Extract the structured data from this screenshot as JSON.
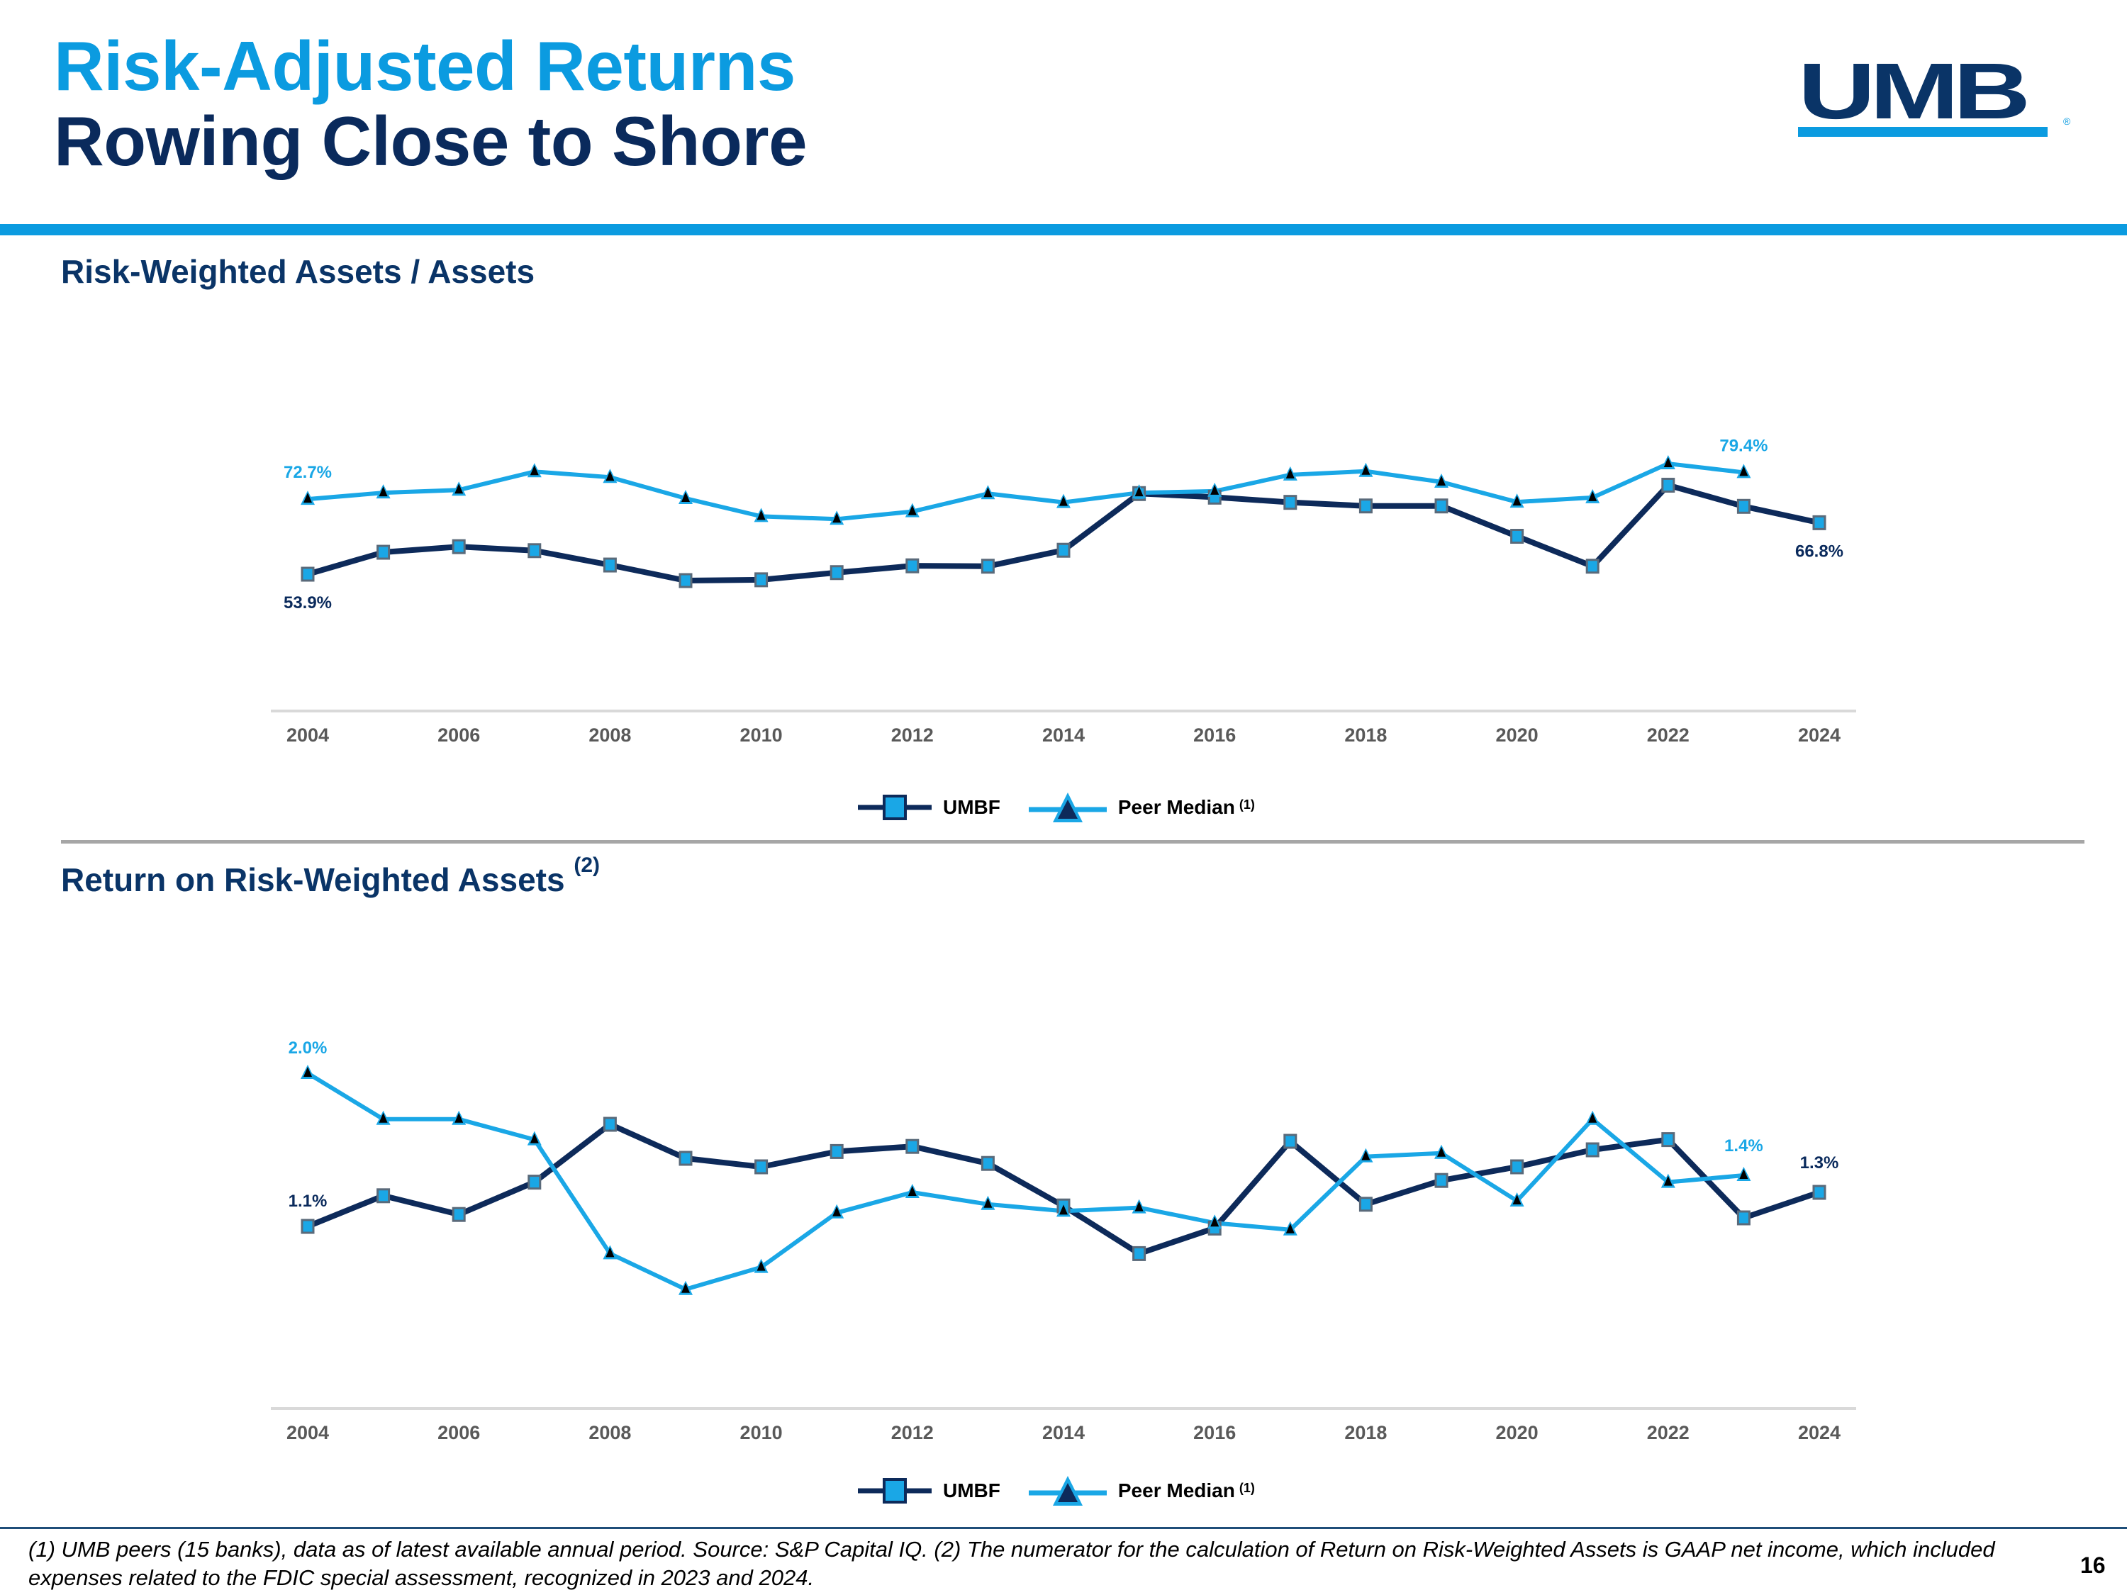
{
  "header": {
    "title_line1": "Risk-Adjusted Returns",
    "title_line2": "Rowing Close to Shore",
    "logo_text": "UMB",
    "logo_reg": "®"
  },
  "colors": {
    "accent_light_blue": "#0b9be0",
    "navy": "#0a2a5c",
    "umbf_line": "#0d2a5a",
    "peer_line": "#1aa7e6",
    "marker_fill": "#1aa7e6"
  },
  "sections": [
    {
      "title": "Risk-Weighted Assets / Assets",
      "footnote_ref": ""
    },
    {
      "title": "Return on Risk-Weighted Assets",
      "footnote_ref": "(2)"
    }
  ],
  "legend": {
    "umbf_label": "UMBF",
    "peer_label": "Peer Median",
    "peer_ref": "(1)"
  },
  "chart_data": [
    {
      "type": "line",
      "title": "Risk-Weighted Assets / Assets",
      "xlabel": "",
      "ylabel": "",
      "x": [
        2004,
        2005,
        2006,
        2007,
        2008,
        2009,
        2010,
        2011,
        2012,
        2013,
        2014,
        2015,
        2016,
        2017,
        2018,
        2019,
        2020,
        2021,
        2022,
        2023,
        2024
      ],
      "x_tick_labels": [
        "2004",
        "2006",
        "2008",
        "2010",
        "2012",
        "2014",
        "2016",
        "2018",
        "2020",
        "2022",
        "2024"
      ],
      "ylim": [
        40,
        90
      ],
      "grid": false,
      "legend_position": "bottom",
      "series": [
        {
          "name": "UMBF",
          "marker": "square",
          "values": [
            53.9,
            59.4,
            60.8,
            59.8,
            56.2,
            52.3,
            52.5,
            54.3,
            56.0,
            55.9,
            59.9,
            74.1,
            73.2,
            71.9,
            71.0,
            71.0,
            63.4,
            55.9,
            76.2,
            70.9,
            66.8
          ]
        },
        {
          "name": "Peer Median (1)",
          "marker": "triangle",
          "values": [
            72.7,
            74.3,
            75.0,
            79.6,
            78.2,
            72.9,
            68.4,
            67.7,
            69.6,
            74.1,
            71.9,
            74.3,
            74.7,
            78.8,
            79.7,
            77.0,
            72.0,
            73.1,
            81.6,
            79.4,
            null
          ]
        }
      ],
      "annotations": [
        {
          "series": "Peer Median (1)",
          "x": 2004,
          "text": "72.7%",
          "position": "above"
        },
        {
          "series": "UMBF",
          "x": 2004,
          "text": "53.9%",
          "position": "below"
        },
        {
          "series": "Peer Median (1)",
          "x": 2023,
          "text": "79.4%",
          "position": "above"
        },
        {
          "series": "UMBF",
          "x": 2024,
          "text": "66.8%",
          "position": "below"
        }
      ]
    },
    {
      "type": "line",
      "title": "Return on Risk-Weighted Assets (2)",
      "xlabel": "",
      "ylabel": "",
      "x": [
        2004,
        2005,
        2006,
        2007,
        2008,
        2009,
        2010,
        2011,
        2012,
        2013,
        2014,
        2015,
        2016,
        2017,
        2018,
        2019,
        2020,
        2021,
        2022,
        2023,
        2024
      ],
      "x_tick_labels": [
        "2004",
        "2006",
        "2008",
        "2010",
        "2012",
        "2014",
        "2016",
        "2018",
        "2020",
        "2022",
        "2024"
      ],
      "ylim": [
        0.2,
        2.3
      ],
      "grid": false,
      "legend_position": "bottom",
      "series": [
        {
          "name": "UMBF",
          "marker": "square",
          "values": [
            1.1,
            1.28,
            1.17,
            1.36,
            1.7,
            1.5,
            1.45,
            1.54,
            1.57,
            1.47,
            1.22,
            0.94,
            1.09,
            1.6,
            1.23,
            1.37,
            1.45,
            1.55,
            1.61,
            1.15,
            1.3
          ]
        },
        {
          "name": "Peer Median (1)",
          "marker": "triangle",
          "values": [
            2.0,
            1.73,
            1.73,
            1.61,
            0.94,
            0.73,
            0.86,
            1.18,
            1.3,
            1.23,
            1.19,
            1.21,
            1.12,
            1.08,
            1.51,
            1.53,
            1.25,
            1.73,
            1.36,
            1.4,
            null
          ]
        }
      ],
      "annotations": [
        {
          "series": "Peer Median (1)",
          "x": 2004,
          "text": "2.0%",
          "position": "above"
        },
        {
          "series": "UMBF",
          "x": 2004,
          "text": "1.1%",
          "position": "above"
        },
        {
          "series": "Peer Median (1)",
          "x": 2023,
          "text": "1.4%",
          "position": "above"
        },
        {
          "series": "UMBF",
          "x": 2024,
          "text": "1.3%",
          "position": "above"
        }
      ]
    }
  ],
  "footer": {
    "footnote": "(1) UMB peers (15 banks), data as of latest available annual period. Source: S&P Capital IQ. (2) The numerator for the calculation of Return on Risk-Weighted Assets is GAAP net income, which included expenses related to the FDIC special assessment, recognized in 2023 and 2024.",
    "page_number": "16"
  }
}
